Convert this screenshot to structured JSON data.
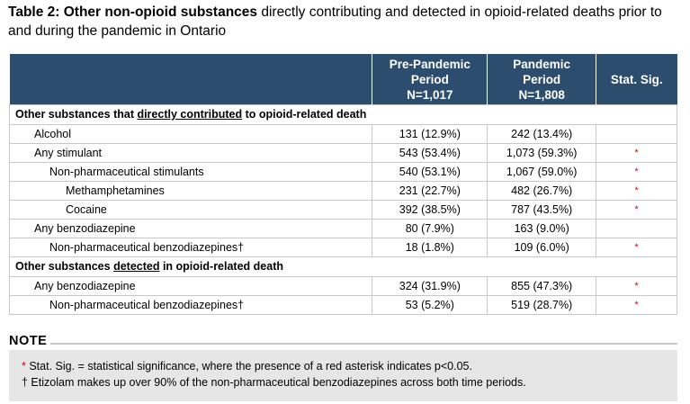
{
  "title": {
    "bold": "Table 2: Other non-opioid substances",
    "rest": " directly contributing and detected in opioid-related deaths prior to and during the pandemic in Ontario"
  },
  "table": {
    "headers": {
      "pre": [
        "Pre-Pandemic",
        "Period",
        "N=1,017"
      ],
      "pan": [
        "Pandemic",
        "Period",
        "N=1,808"
      ],
      "sig": "Stat. Sig."
    },
    "section1": {
      "before": "Other substances that ",
      "underlined": "directly contributed",
      "after": " to opioid-related death"
    },
    "section2": {
      "before": "Other substances ",
      "underlined": "detected",
      "after": " in opioid-related death"
    },
    "rows1": [
      {
        "label": "Alcohol",
        "pre": "131 (12.9%)",
        "pan": "242 (13.4%)",
        "sig": ""
      },
      {
        "label": "Any stimulant",
        "pre": "543 (53.4%)",
        "pan": "1,073 (59.3%)",
        "sig": "*"
      },
      {
        "label": "Non-pharmaceutical stimulants",
        "pre": "540 (53.1%)",
        "pan": "1,067 (59.0%)",
        "sig": "*"
      },
      {
        "label": "Methamphetamines",
        "pre": "231 (22.7%)",
        "pan": "482 (26.7%)",
        "sig": "*"
      },
      {
        "label": "Cocaine",
        "pre": "392 (38.5%)",
        "pan": "787 (43.5%)",
        "sig": "*"
      },
      {
        "label": "Any benzodiazepine",
        "pre": "80 (7.9%)",
        "pan": "163 (9.0%)",
        "sig": ""
      },
      {
        "label": "Non-pharmaceutical benzodiazepines†",
        "pre": "18 (1.8%)",
        "pan": "109 (6.0%)",
        "sig": "*"
      }
    ],
    "rows2": [
      {
        "label": "Any benzodiazepine",
        "pre": "324 (31.9%)",
        "pan": "855 (47.3%)",
        "sig": "*"
      },
      {
        "label": "Non-pharmaceutical benzodiazepines†",
        "pre": "53 (5.2%)",
        "pan": "519 (28.7%)",
        "sig": "*"
      }
    ]
  },
  "note": {
    "heading": "NOTE",
    "line1_mark": "*",
    "line1_text": " Stat. Sig. = statistical significance, where the presence of a red asterisk indicates p<0.05.",
    "line2": "† Etizolam makes up over 90% of the non-pharmaceutical benzodiazepines across both time periods."
  },
  "colors": {
    "header_bg": "#2c4d6e",
    "asterisk": "#d0021b",
    "note_bg": "#e6e6e6"
  }
}
